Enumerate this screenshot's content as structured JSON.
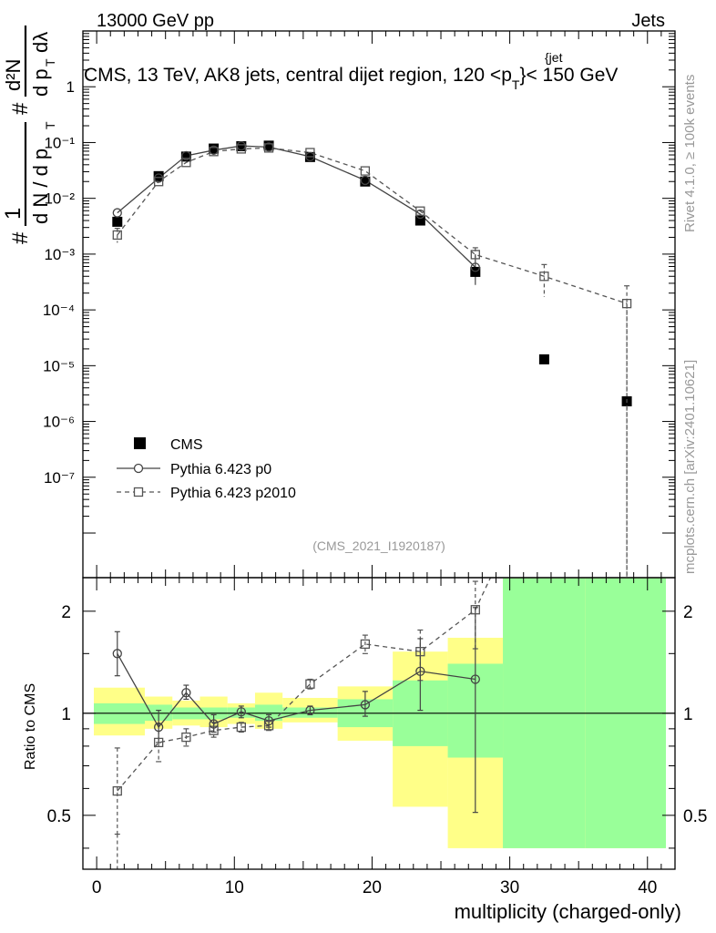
{
  "header": {
    "left": "13000 GeV pp",
    "right": "Jets",
    "title_main": "CMS, 13 TeV, AK8 jets, central dijet region, 120 <p",
    "title_sub": "T",
    "title_sup": "{jet",
    "title_end": "}< 150 GeV"
  },
  "side_labels": {
    "rivet": "Rivet 4.1.0, ≥ 100k events",
    "mcplots": "mcplots.cern.ch [arXiv:2401.10621]"
  },
  "analysis_id": "(CMS_2021_I1920187)",
  "y_axis_top": {
    "label_hash1": "#",
    "label_one": "1",
    "label_dn": "d N / d p",
    "label_dn_sub": "T",
    "label_hash2": "#",
    "label_d2n": "d²N",
    "label_dpt": "d p",
    "label_dpt_sub": "T",
    "label_dl": "dλ"
  },
  "y_axis_bottom": {
    "label": "Ratio to CMS"
  },
  "x_axis": {
    "label": "multiplicity (charged-only)"
  },
  "legend": [
    {
      "key": "cms",
      "label": "CMS"
    },
    {
      "key": "p0",
      "label": "Pythia 6.423 p0"
    },
    {
      "key": "p2010",
      "label": "Pythia 6.423 p2010"
    }
  ],
  "chart_data": [
    {
      "type": "scatter",
      "panel": "main",
      "xlim": [
        -1,
        42
      ],
      "ylim_log10": [
        -8.8,
        1.0
      ],
      "y_scale": "log",
      "y_ticks": [
        "1",
        "10⁻¹",
        "10⁻²",
        "10⁻³",
        "10⁻⁴",
        "10⁻⁵",
        "10⁻⁶",
        "10⁻⁷"
      ],
      "x_ticks": [
        0,
        10,
        20,
        30,
        40
      ],
      "series": [
        {
          "name": "CMS",
          "x": [
            1.5,
            4.5,
            6.5,
            8.5,
            10.5,
            12.5,
            15.5,
            19.5,
            23.5,
            27.5,
            32.5,
            38.5
          ],
          "y": [
            0.0038,
            0.025,
            0.056,
            0.078,
            0.086,
            0.088,
            0.055,
            0.02,
            0.004,
            0.00048,
            1.3e-05,
            2.3e-06
          ]
        },
        {
          "name": "Pythia 6.423 p0",
          "x": [
            1.5,
            4.5,
            6.5,
            8.5,
            10.5,
            12.5,
            15.5,
            19.5,
            23.5,
            27.5
          ],
          "y": [
            0.0055,
            0.023,
            0.058,
            0.073,
            0.087,
            0.083,
            0.056,
            0.021,
            0.0052,
            0.00058
          ],
          "err_lo": [
            null,
            null,
            null,
            null,
            null,
            null,
            null,
            null,
            null,
            0.00028
          ],
          "err_hi": [
            null,
            null,
            null,
            null,
            null,
            null,
            null,
            null,
            null,
            0.00095
          ]
        },
        {
          "name": "Pythia 6.423 p2010",
          "x": [
            1.5,
            4.5,
            6.5,
            8.5,
            10.5,
            12.5,
            15.5,
            19.5,
            23.5,
            27.5,
            32.5,
            38.5
          ],
          "y": [
            0.0022,
            0.02,
            0.044,
            0.069,
            0.077,
            0.08,
            0.066,
            0.031,
            0.0059,
            0.00098,
            0.0004,
            0.00013
          ],
          "err_lo": [
            0.0016,
            null,
            null,
            null,
            null,
            null,
            null,
            null,
            null,
            0.00075,
            0.00017,
            1e-09
          ],
          "err_hi": [
            0.0029,
            null,
            null,
            null,
            null,
            null,
            null,
            null,
            null,
            0.0013,
            0.00065,
            0.00027
          ]
        }
      ]
    },
    {
      "type": "scatter",
      "panel": "ratio",
      "xlim": [
        -1,
        42
      ],
      "ylim_log10": [
        -0.46,
        0.4
      ],
      "y_scale": "log",
      "y_ticks": [
        0.5,
        1,
        2
      ],
      "ylabel": "Ratio to CMS",
      "xlabel": "multiplicity (charged-only)",
      "bands": [
        {
          "x0": -0.5,
          "x1": 3.5,
          "green": [
            0.93,
            1.07
          ],
          "yellow": [
            0.86,
            1.19
          ]
        },
        {
          "x0": 3.5,
          "x1": 5.5,
          "green": [
            0.95,
            1.06
          ],
          "yellow": [
            0.9,
            1.12
          ]
        },
        {
          "x0": 5.5,
          "x1": 7.5,
          "green": [
            0.96,
            1.04
          ],
          "yellow": [
            0.92,
            1.09
          ]
        },
        {
          "x0": 7.5,
          "x1": 9.5,
          "green": [
            0.96,
            1.04
          ],
          "yellow": [
            0.91,
            1.12
          ]
        },
        {
          "x0": 9.5,
          "x1": 11.5,
          "green": [
            0.97,
            1.04
          ],
          "yellow": [
            0.93,
            1.07
          ]
        },
        {
          "x0": 11.5,
          "x1": 13.5,
          "green": [
            0.95,
            1.06
          ],
          "yellow": [
            0.9,
            1.15
          ]
        },
        {
          "x0": 13.5,
          "x1": 17.5,
          "green": [
            0.97,
            1.04
          ],
          "yellow": [
            0.94,
            1.11
          ]
        },
        {
          "x0": 17.5,
          "x1": 21.5,
          "green": [
            0.91,
            1.1
          ],
          "yellow": [
            0.83,
            1.2
          ]
        },
        {
          "x0": 21.5,
          "x1": 25.5,
          "green": [
            0.8,
            1.25
          ],
          "yellow": [
            0.53,
            1.52
          ]
        },
        {
          "x0": 25.5,
          "x1": 29.5,
          "green": [
            0.74,
            1.4
          ],
          "yellow": [
            0.4,
            1.67
          ]
        },
        {
          "x0": 29.5,
          "x1": 35.5,
          "green": [
            0.4,
            2.5
          ],
          "yellow": [
            0.4,
            2.5
          ]
        },
        {
          "x0": 35.5,
          "x1": 41.5,
          "green": [
            0.4,
            2.5
          ],
          "yellow": [
            0.4,
            2.5
          ]
        }
      ],
      "series": [
        {
          "name": "Pythia 6.423 p0",
          "x": [
            1.5,
            4.5,
            6.5,
            8.5,
            10.5,
            12.5,
            15.5,
            19.5,
            23.5,
            27.5
          ],
          "y": [
            1.5,
            0.91,
            1.15,
            0.93,
            1.01,
            0.95,
            1.02,
            1.06,
            1.33,
            1.26
          ],
          "err_lo": [
            1.29,
            0.82,
            1.1,
            0.88,
            0.97,
            0.91,
            0.99,
            0.98,
            1.02,
            0.51
          ],
          "err_hi": [
            1.74,
            1.02,
            1.21,
            0.99,
            1.05,
            0.99,
            1.05,
            1.16,
            1.66,
            2.05
          ]
        },
        {
          "name": "Pythia 6.423 p2010",
          "x": [
            1.5,
            4.5,
            6.5,
            8.5,
            10.5,
            12.5,
            15.5,
            19.5,
            23.5,
            27.5
          ],
          "y": [
            0.59,
            0.82,
            0.85,
            0.89,
            0.91,
            0.92,
            1.22,
            1.6,
            1.52,
            2.02
          ],
          "err_lo": [
            0.44,
            0.72,
            0.8,
            0.85,
            0.88,
            0.89,
            1.18,
            1.5,
            1.25,
            1.55
          ],
          "err_hi": [
            0.79,
            0.93,
            0.9,
            0.94,
            0.94,
            0.95,
            1.26,
            1.7,
            1.76,
            2.45
          ]
        }
      ]
    }
  ],
  "colors": {
    "cms": "#000000",
    "p0": "#444444",
    "p2010": "#555555",
    "band_green": "#99ff99",
    "band_yellow": "#ffff88",
    "side_text": "#999999"
  }
}
